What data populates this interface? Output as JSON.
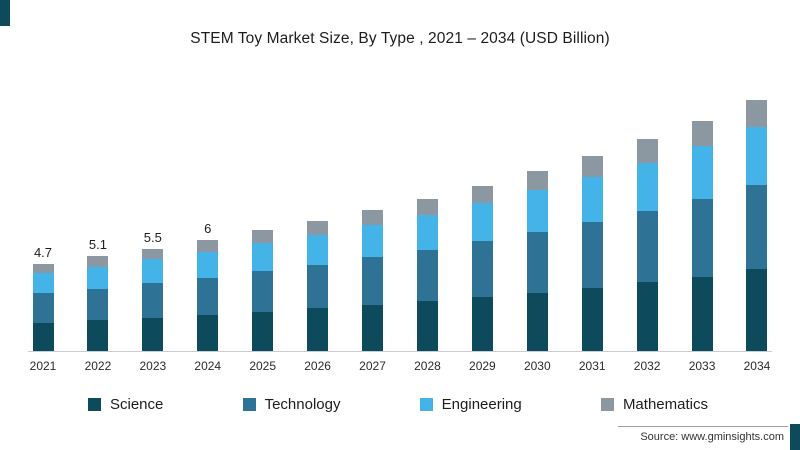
{
  "title": "STEM Toy Market Size, By Type , 2021 – 2034 (USD Billion)",
  "source": "Source: www.gminsights.com",
  "accent_color": "#0d4a5c",
  "chart_data": {
    "type": "bar",
    "stacked": true,
    "title": "STEM Toy Market Size, By Type , 2021 – 2034 (USD Billion)",
    "unit": "USD Billion",
    "legend_position": "bottom",
    "grid": false,
    "ylim": [
      0,
      14
    ],
    "categories": [
      "2021",
      "2022",
      "2023",
      "2024",
      "2025",
      "2026",
      "2027",
      "2028",
      "2029",
      "2030",
      "2031",
      "2032",
      "2033",
      "2034"
    ],
    "bar_labels": [
      "4.7",
      "5.1",
      "5.5",
      "6",
      "",
      "",
      "",
      "",
      "",
      "",
      "",
      "",
      "",
      ""
    ],
    "totals": [
      4.7,
      5.1,
      5.5,
      6.0,
      6.5,
      7.0,
      7.6,
      8.2,
      8.9,
      9.7,
      10.5,
      11.4,
      12.4,
      13.5
    ],
    "series": [
      {
        "name": "Science",
        "color": "#0d4a5c",
        "values": [
          1.5,
          1.65,
          1.8,
          1.95,
          2.1,
          2.3,
          2.5,
          2.7,
          2.9,
          3.15,
          3.4,
          3.7,
          4.0,
          4.4
        ]
      },
      {
        "name": "Technology",
        "color": "#2e7396",
        "values": [
          1.6,
          1.7,
          1.85,
          2.0,
          2.2,
          2.35,
          2.55,
          2.75,
          3.0,
          3.25,
          3.55,
          3.85,
          4.2,
          4.55
        ]
      },
      {
        "name": "Engineering",
        "color": "#44b3e8",
        "values": [
          1.1,
          1.2,
          1.3,
          1.4,
          1.5,
          1.6,
          1.75,
          1.9,
          2.05,
          2.25,
          2.4,
          2.6,
          2.85,
          3.1
        ]
      },
      {
        "name": "Mathematics",
        "color": "#8b98a2",
        "values": [
          0.5,
          0.55,
          0.55,
          0.65,
          0.7,
          0.75,
          0.8,
          0.85,
          0.95,
          1.05,
          1.15,
          1.25,
          1.35,
          1.45
        ]
      }
    ]
  }
}
